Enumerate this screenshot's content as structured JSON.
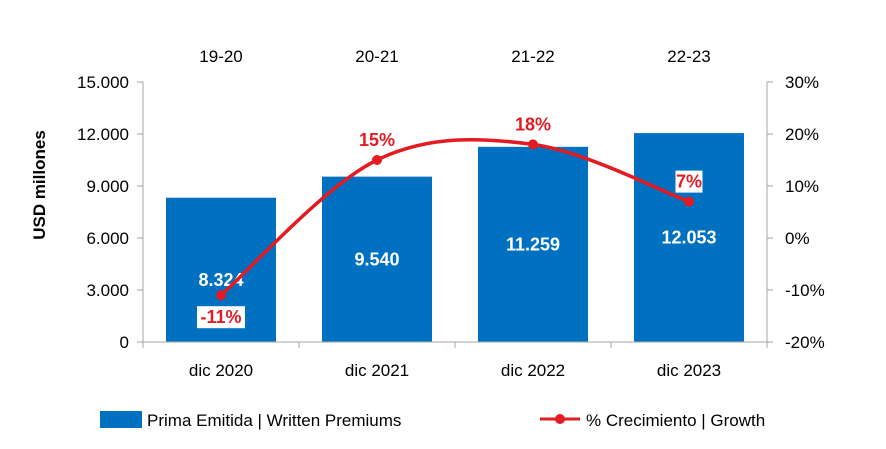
{
  "chart_data": {
    "type": "bar",
    "categories": [
      "dic 2020",
      "dic 2021",
      "dic 2022",
      "dic 2023"
    ],
    "top_categories": [
      "19-20",
      "20-21",
      "21-22",
      "22-23"
    ],
    "series": [
      {
        "name": "Prima Emitida | Written Premiums",
        "type": "bar",
        "axis": "left",
        "values": [
          8324,
          9540,
          11259,
          12053
        ],
        "labels": [
          "8.324",
          "9.540",
          "11.259",
          "12.053"
        ],
        "color": "#0070c0"
      },
      {
        "name": "% Crecimiento | Growth",
        "type": "line",
        "axis": "right",
        "values": [
          -11,
          15,
          18,
          7
        ],
        "labels": [
          "-11%",
          "15%",
          "18%",
          "7%"
        ],
        "color": "#e31b23"
      }
    ],
    "ylabel": "USD millones",
    "ylim": [
      0,
      15000
    ],
    "y_ticks": [
      "0",
      "3.000",
      "6.000",
      "9.000",
      "12.000",
      "15.000"
    ],
    "y_tick_values": [
      0,
      3000,
      6000,
      9000,
      12000,
      15000
    ],
    "y2lim": [
      -20,
      30
    ],
    "y2_ticks": [
      "-20%",
      "-10%",
      "0%",
      "10%",
      "20%",
      "30%"
    ],
    "y2_tick_values": [
      -20,
      -10,
      0,
      10,
      20,
      30
    ],
    "legend_position": "bottom"
  }
}
